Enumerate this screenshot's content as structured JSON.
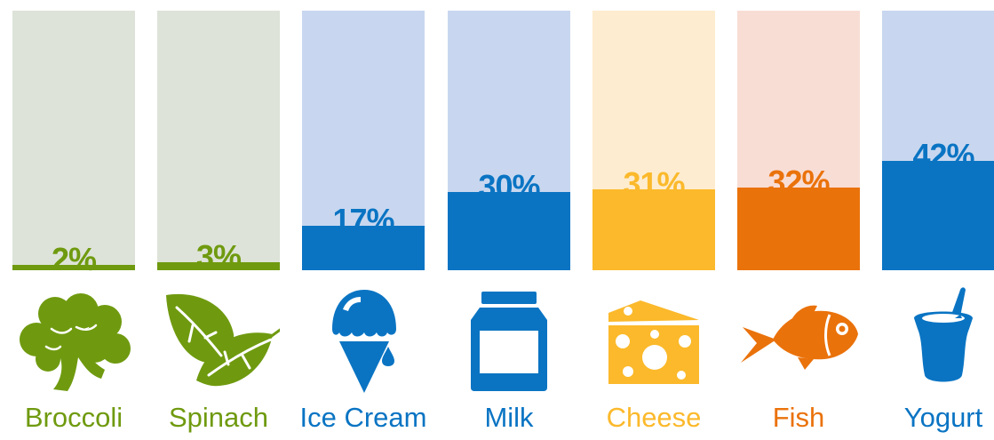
{
  "chart_data": {
    "type": "bar",
    "categories": [
      "Broccoli",
      "Spinach",
      "Ice Cream",
      "Milk",
      "Cheese",
      "Fish",
      "Yogurt"
    ],
    "values": [
      2,
      3,
      17,
      30,
      31,
      32,
      42
    ],
    "value_labels": [
      "2%",
      "3%",
      "17%",
      "30%",
      "31%",
      "32%",
      "42%"
    ],
    "ylim": [
      0,
      100
    ],
    "unit": "%",
    "colors": [
      "#6f9a0f",
      "#6f9a0f",
      "#0a74c3",
      "#0a74c3",
      "#fbb92b",
      "#ea720b",
      "#0a74c3"
    ],
    "background_colors": [
      "#dde3d8",
      "#dde3d8",
      "#c8d7ef",
      "#c8d7ef",
      "#fdeccf",
      "#f8ddd5",
      "#c8d7ef"
    ],
    "icons": [
      "broccoli-icon",
      "spinach-leaf-icon",
      "ice-cream-icon",
      "milk-carton-icon",
      "cheese-icon",
      "fish-icon",
      "yogurt-icon"
    ]
  }
}
